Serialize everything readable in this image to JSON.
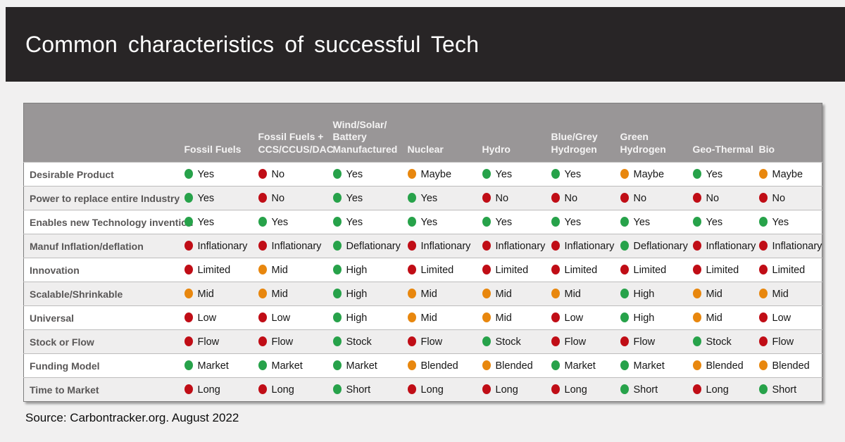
{
  "title": "Common characteristics of successful Tech",
  "source": "Source: Carbontracker.org. August 2022",
  "colors": {
    "green": "#27a24a",
    "red": "#c00d16",
    "orange": "#e8870e"
  },
  "chart_data": {
    "type": "table",
    "title": "Common characteristics of successful Tech",
    "columns": [
      "Fossil Fuels",
      "Fossil Fuels + CCS/CCUS/DAC",
      "Wind/Solar/ Battery Manufactured",
      "Nuclear",
      "Hydro",
      "Blue/Grey Hydrogen",
      "Green Hydrogen",
      "Geo-Thermal",
      "Bio"
    ],
    "rows": [
      {
        "label": "Desirable Product",
        "cells": [
          {
            "value": "Yes",
            "status": "green"
          },
          {
            "value": "No",
            "status": "red"
          },
          {
            "value": "Yes",
            "status": "green"
          },
          {
            "value": "Maybe",
            "status": "orange"
          },
          {
            "value": "Yes",
            "status": "green"
          },
          {
            "value": "Yes",
            "status": "green"
          },
          {
            "value": "Maybe",
            "status": "orange"
          },
          {
            "value": "Yes",
            "status": "green"
          },
          {
            "value": "Maybe",
            "status": "orange"
          }
        ]
      },
      {
        "label": "Power to replace entire Industry",
        "cells": [
          {
            "value": "Yes",
            "status": "green"
          },
          {
            "value": "No",
            "status": "red"
          },
          {
            "value": "Yes",
            "status": "green"
          },
          {
            "value": "Yes",
            "status": "green"
          },
          {
            "value": "No",
            "status": "red"
          },
          {
            "value": "No",
            "status": "red"
          },
          {
            "value": "No",
            "status": "red"
          },
          {
            "value": "No",
            "status": "red"
          },
          {
            "value": "No",
            "status": "red"
          }
        ]
      },
      {
        "label": "Enables new Technology invention",
        "cells": [
          {
            "value": "Yes",
            "status": "green"
          },
          {
            "value": "Yes",
            "status": "green"
          },
          {
            "value": "Yes",
            "status": "green"
          },
          {
            "value": "Yes",
            "status": "green"
          },
          {
            "value": "Yes",
            "status": "green"
          },
          {
            "value": "Yes",
            "status": "green"
          },
          {
            "value": "Yes",
            "status": "green"
          },
          {
            "value": "Yes",
            "status": "green"
          },
          {
            "value": "Yes",
            "status": "green"
          }
        ]
      },
      {
        "label": "Manuf Inflation/deflation",
        "cells": [
          {
            "value": "Inflationary",
            "status": "red"
          },
          {
            "value": "Inflationary",
            "status": "red"
          },
          {
            "value": "Deflationary",
            "status": "green"
          },
          {
            "value": "Inflationary",
            "status": "red"
          },
          {
            "value": "Inflationary",
            "status": "red"
          },
          {
            "value": "Inflationary",
            "status": "red"
          },
          {
            "value": "Deflationary",
            "status": "green"
          },
          {
            "value": "Inflationary",
            "status": "red"
          },
          {
            "value": "Inflationary",
            "status": "red"
          }
        ]
      },
      {
        "label": "Innovation",
        "cells": [
          {
            "value": "Limited",
            "status": "red"
          },
          {
            "value": "Mid",
            "status": "orange"
          },
          {
            "value": "High",
            "status": "green"
          },
          {
            "value": "Limited",
            "status": "red"
          },
          {
            "value": "Limited",
            "status": "red"
          },
          {
            "value": "Limited",
            "status": "red"
          },
          {
            "value": "Limited",
            "status": "red"
          },
          {
            "value": "Limited",
            "status": "red"
          },
          {
            "value": "Limited",
            "status": "red"
          }
        ]
      },
      {
        "label": "Scalable/Shrinkable",
        "cells": [
          {
            "value": "Mid",
            "status": "orange"
          },
          {
            "value": "Mid",
            "status": "orange"
          },
          {
            "value": "High",
            "status": "green"
          },
          {
            "value": "Mid",
            "status": "orange"
          },
          {
            "value": "Mid",
            "status": "orange"
          },
          {
            "value": "Mid",
            "status": "orange"
          },
          {
            "value": "High",
            "status": "green"
          },
          {
            "value": "Mid",
            "status": "orange"
          },
          {
            "value": "Mid",
            "status": "orange"
          }
        ]
      },
      {
        "label": "Universal",
        "cells": [
          {
            "value": "Low",
            "status": "red"
          },
          {
            "value": "Low",
            "status": "red"
          },
          {
            "value": "High",
            "status": "green"
          },
          {
            "value": "Mid",
            "status": "orange"
          },
          {
            "value": "Mid",
            "status": "orange"
          },
          {
            "value": "Low",
            "status": "red"
          },
          {
            "value": "High",
            "status": "green"
          },
          {
            "value": "Mid",
            "status": "orange"
          },
          {
            "value": "Low",
            "status": "red"
          }
        ]
      },
      {
        "label": "Stock or Flow",
        "cells": [
          {
            "value": "Flow",
            "status": "red"
          },
          {
            "value": "Flow",
            "status": "red"
          },
          {
            "value": "Stock",
            "status": "green"
          },
          {
            "value": "Flow",
            "status": "red"
          },
          {
            "value": "Stock",
            "status": "green"
          },
          {
            "value": "Flow",
            "status": "red"
          },
          {
            "value": "Flow",
            "status": "red"
          },
          {
            "value": "Stock",
            "status": "green"
          },
          {
            "value": "Flow",
            "status": "red"
          }
        ]
      },
      {
        "label": "Funding Model",
        "cells": [
          {
            "value": "Market",
            "status": "green"
          },
          {
            "value": "Market",
            "status": "green"
          },
          {
            "value": "Market",
            "status": "green"
          },
          {
            "value": "Blended",
            "status": "orange"
          },
          {
            "value": "Blended",
            "status": "orange"
          },
          {
            "value": "Market",
            "status": "green"
          },
          {
            "value": "Market",
            "status": "green"
          },
          {
            "value": "Blended",
            "status": "orange"
          },
          {
            "value": "Blended",
            "status": "orange"
          }
        ]
      },
      {
        "label": "Time to Market",
        "cells": [
          {
            "value": "Long",
            "status": "red"
          },
          {
            "value": "Long",
            "status": "red"
          },
          {
            "value": "Short",
            "status": "green"
          },
          {
            "value": "Long",
            "status": "red"
          },
          {
            "value": "Long",
            "status": "red"
          },
          {
            "value": "Long",
            "status": "red"
          },
          {
            "value": "Short",
            "status": "green"
          },
          {
            "value": "Long",
            "status": "red"
          },
          {
            "value": "Short",
            "status": "green"
          }
        ]
      }
    ]
  }
}
